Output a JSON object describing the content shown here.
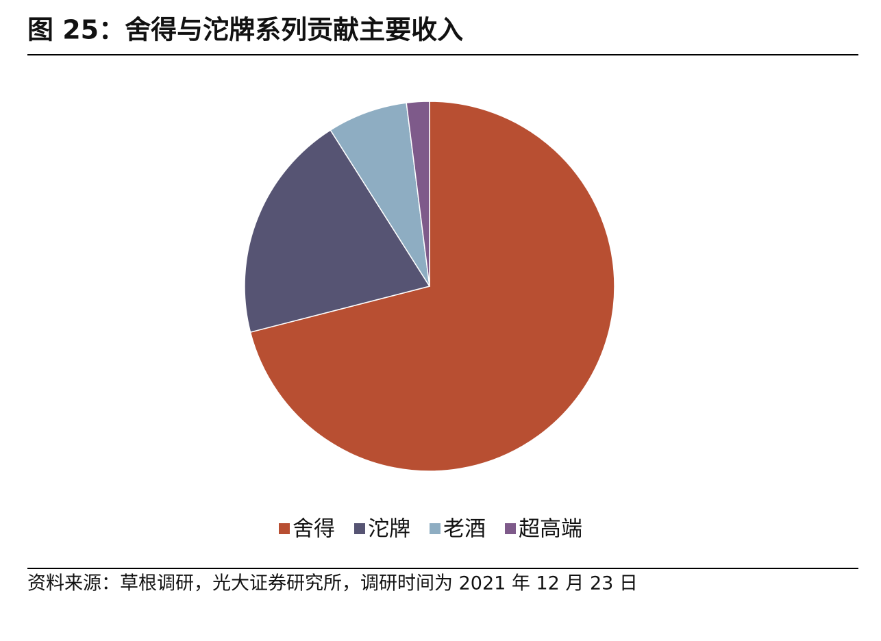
{
  "chart_data": {
    "type": "pie",
    "title": "图 25：舍得与沱牌系列贡献主要收入",
    "categories": [
      "舍得",
      "沱牌",
      "老酒",
      "超高端"
    ],
    "values": [
      71,
      20,
      7,
      2
    ],
    "colors": [
      "#b84f32",
      "#565473",
      "#8eadc2",
      "#7e5a8a"
    ],
    "legend": "bottom",
    "source": "资料来源：草根调研，光大证券研究所，调研时间为 2021 年 12 月 23 日"
  }
}
